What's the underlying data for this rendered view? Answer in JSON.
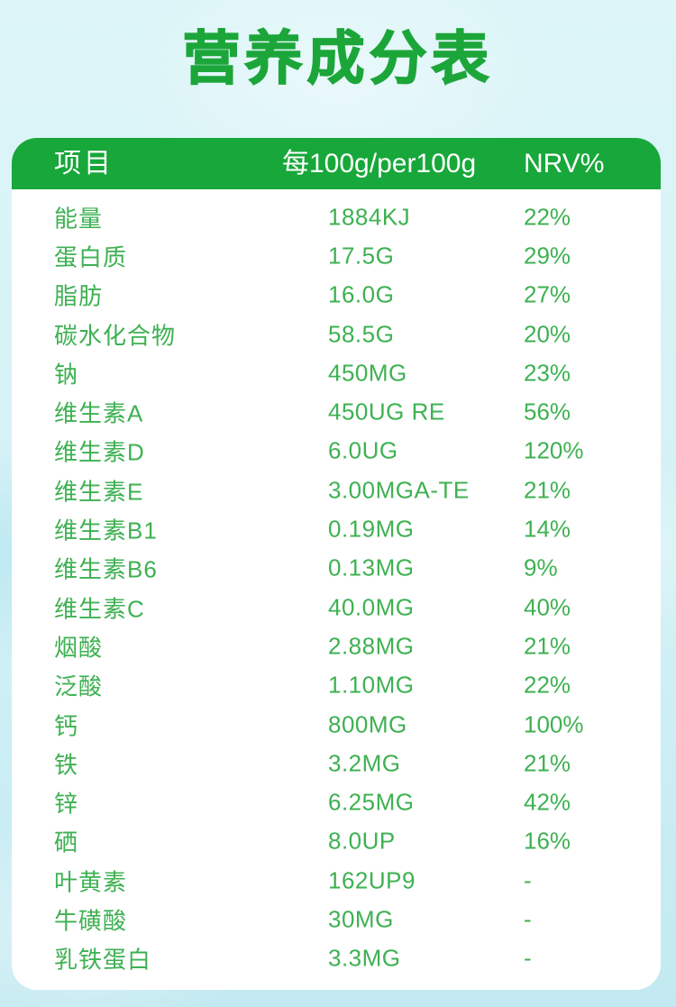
{
  "title": "营养成分表",
  "table": {
    "headers": [
      "项目",
      "每100g/per100g",
      "NRV%"
    ],
    "rows": [
      {
        "item": "能量",
        "value": "1884KJ",
        "nrv": "22%"
      },
      {
        "item": "蛋白质",
        "value": "17.5G",
        "nrv": "29%"
      },
      {
        "item": "脂肪",
        "value": "16.0G",
        "nrv": "27%"
      },
      {
        "item": "碳水化合物",
        "value": "58.5G",
        "nrv": "20%"
      },
      {
        "item": "钠",
        "value": "450MG",
        "nrv": "23%"
      },
      {
        "item": "维生素A",
        "value": "450UG RE",
        "nrv": "56%"
      },
      {
        "item": "维生素D",
        "value": "6.0UG",
        "nrv": "120%"
      },
      {
        "item": "维生素E",
        "value": "3.00MGA-TE",
        "nrv": "21%"
      },
      {
        "item": "维生素B1",
        "value": "0.19MG",
        "nrv": "14%"
      },
      {
        "item": "维生素B6",
        "value": "0.13MG",
        "nrv": "9%"
      },
      {
        "item": "维生素C",
        "value": "40.0MG",
        "nrv": "40%"
      },
      {
        "item": "烟酸",
        "value": "2.88MG",
        "nrv": "21%"
      },
      {
        "item": "泛酸",
        "value": "1.10MG",
        "nrv": "22%"
      },
      {
        "item": "钙",
        "value": "800MG",
        "nrv": "100%"
      },
      {
        "item": "铁",
        "value": "3.2MG",
        "nrv": "21%"
      },
      {
        "item": "锌",
        "value": "6.25MG",
        "nrv": "42%"
      },
      {
        "item": "硒",
        "value": "8.0UP",
        "nrv": "16%"
      },
      {
        "item": "叶黄素",
        "value": "162UP9",
        "nrv": "-"
      },
      {
        "item": "牛磺酸",
        "value": "30MG",
        "nrv": "-"
      },
      {
        "item": "乳铁蛋白",
        "value": "3.3MG",
        "nrv": "-"
      }
    ]
  },
  "colors": {
    "title-green": "#1ca63a",
    "header-green": "#18a73a",
    "row-green": "#3eb152",
    "card-bg": "#ffffff",
    "bg-top": "#ddf5f8",
    "bg-bottom": "#c2e9f1"
  }
}
